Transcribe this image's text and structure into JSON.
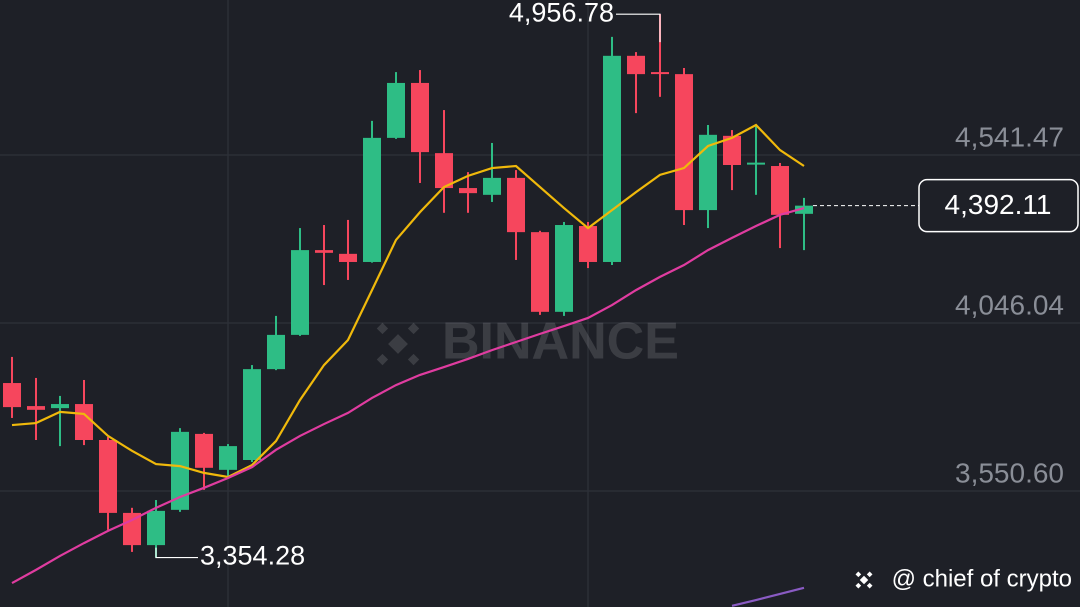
{
  "chart_data": {
    "type": "candlestick",
    "ylim": [
      3208.5,
      4998.6
    ],
    "yticks": [
      {
        "value": 4541.47,
        "label": "4,541.47"
      },
      {
        "value": 4046.04,
        "label": "4,046.04"
      },
      {
        "value": 3550.6,
        "label": "3,550.60"
      }
    ],
    "grid": true,
    "up_color": "#2ebd85",
    "down_color": "#f6465d",
    "ohlc": [
      [
        3869,
        3946,
        3766,
        3798
      ],
      [
        3801,
        3884,
        3701,
        3790
      ],
      [
        3795,
        3831,
        3683,
        3807
      ],
      [
        3807,
        3878,
        3686,
        3701
      ],
      [
        3701,
        3710,
        3436,
        3486
      ],
      [
        3486,
        3501,
        3371,
        3391
      ],
      [
        3391,
        3524,
        3354.28,
        3492
      ],
      [
        3495,
        3736,
        3489,
        3725
      ],
      [
        3719,
        3722,
        3554,
        3619
      ],
      [
        3613,
        3689,
        3589,
        3683
      ],
      [
        3642,
        3922,
        3636,
        3910
      ],
      [
        3910,
        4067,
        3907,
        4011
      ],
      [
        4011,
        4326,
        4008,
        4261
      ],
      [
        4261,
        4335,
        4158,
        4253
      ],
      [
        4250,
        4350,
        4173,
        4226
      ],
      [
        4226,
        4642,
        4224,
        4592
      ],
      [
        4592,
        4786,
        4589,
        4754
      ],
      [
        4754,
        4792,
        4459,
        4550
      ],
      [
        4547,
        4674,
        4371,
        4444
      ],
      [
        4444,
        4491,
        4371,
        4429
      ],
      [
        4424,
        4577,
        4403,
        4474
      ],
      [
        4474,
        4497,
        4232,
        4314
      ],
      [
        4314,
        4318,
        4070,
        4079
      ],
      [
        4079,
        4344,
        4067,
        4335
      ],
      [
        4332,
        4344,
        4208,
        4226
      ],
      [
        4226,
        4890,
        4217,
        4834
      ],
      [
        4834,
        4845,
        4665,
        4780
      ],
      [
        4786,
        4956.78,
        4713,
        4784
      ],
      [
        4780,
        4798,
        4335,
        4379
      ],
      [
        4379,
        4630,
        4326,
        4601
      ],
      [
        4598,
        4615,
        4438,
        4512
      ],
      [
        4518,
        4630,
        4424,
        4519
      ],
      [
        4509,
        4518,
        4267,
        4365
      ],
      [
        4368,
        4415,
        4261,
        4392.11
      ]
    ],
    "lines": [
      {
        "color": "#f0b90b",
        "values": [
          3745,
          3751,
          3784,
          3778,
          3713,
          3669,
          3630,
          3624,
          3604,
          3592,
          3627,
          3698,
          3819,
          3922,
          3996,
          4143,
          4291,
          4373,
          4447,
          4480,
          4503,
          4509,
          4447,
          4385,
          4326,
          4379,
          4432,
          4483,
          4503,
          4568,
          4592,
          4630,
          4556,
          4509
        ]
      },
      {
        "color": "#e03ca0",
        "values": [
          3279,
          3318,
          3359,
          3397,
          3433,
          3465,
          3501,
          3533,
          3560,
          3589,
          3621,
          3672,
          3713,
          3748,
          3781,
          3825,
          3863,
          3893,
          3916,
          3940,
          3966,
          3990,
          4014,
          4037,
          4061,
          4099,
          4143,
          4182,
          4217,
          4261,
          4297,
          4332,
          4365,
          4385
        ]
      },
      {
        "color": "#8a5bc4",
        "values": [
          null,
          null,
          null,
          null,
          null,
          null,
          null,
          null,
          null,
          null,
          null,
          null,
          null,
          null,
          null,
          null,
          null,
          null,
          null,
          null,
          null,
          null,
          null,
          null,
          null,
          null,
          null,
          null,
          null,
          null,
          3212,
          3229,
          3247,
          3265
        ]
      }
    ],
    "high_label": {
      "index": 27,
      "value": 4956.78,
      "label": "4,956.78"
    },
    "low_label": {
      "index": 6,
      "value": 3354.28,
      "label": "3,354.28"
    },
    "current_price": {
      "value": 4392.11,
      "label": "4,392.11"
    },
    "watermark": "BINANCE",
    "credit": "@ chief of crypto"
  }
}
